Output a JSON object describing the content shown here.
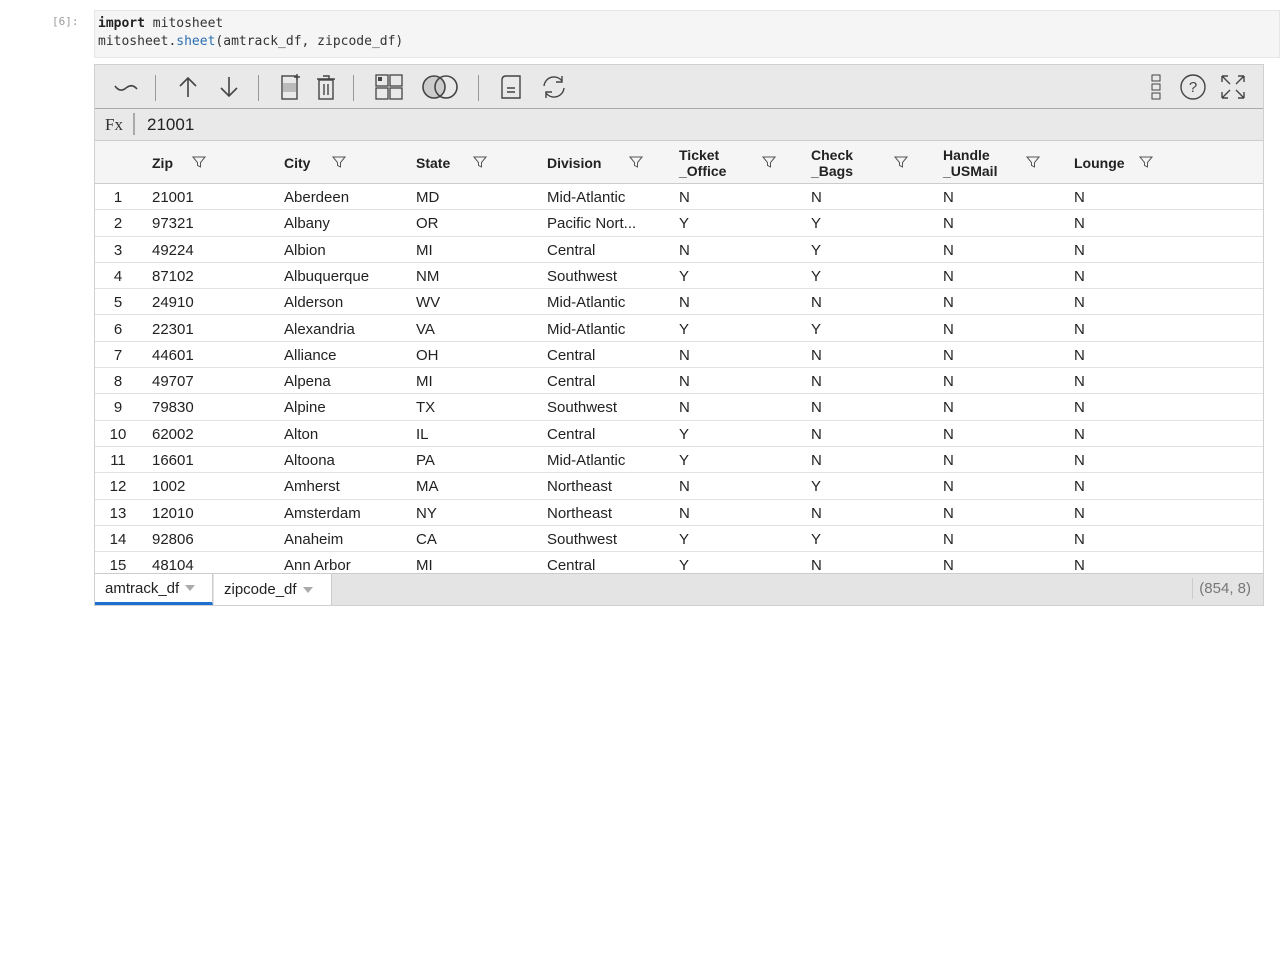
{
  "cell": {
    "prompt": "[6]:",
    "line1_kw": "import",
    "line1_rest": " mitosheet",
    "line2_a": "mitosheet.",
    "line2_fn": "sheet",
    "line2_b": "(amtrack_df, zipcode_df)"
  },
  "toolbar": {
    "icons": [
      "undo-icon",
      "move-up-icon",
      "move-down-icon",
      "add-column-icon",
      "delete-column-icon",
      "pivot-icon",
      "merge-icon",
      "export-icon",
      "refresh-icon",
      "column-list-icon",
      "help-icon",
      "fullscreen-icon"
    ]
  },
  "formula": {
    "label": "Fx",
    "value": "21001"
  },
  "columns": [
    {
      "l1": "Zip",
      "l2": ""
    },
    {
      "l1": "City",
      "l2": ""
    },
    {
      "l1": "State",
      "l2": ""
    },
    {
      "l1": "Division",
      "l2": ""
    },
    {
      "l1": "Ticket",
      "l2": "_Office"
    },
    {
      "l1": "Check",
      "l2": "_Bags"
    },
    {
      "l1": "Handle",
      "l2": "_USMail"
    },
    {
      "l1": "Lounge",
      "l2": ""
    }
  ],
  "rows": [
    [
      "1",
      "21001",
      "Aberdeen",
      "MD",
      "Mid-Atlantic",
      "N",
      "N",
      "N",
      "N"
    ],
    [
      "2",
      "97321",
      "Albany",
      "OR",
      "Pacific Nort...",
      "Y",
      "Y",
      "N",
      "N"
    ],
    [
      "3",
      "49224",
      "Albion",
      "MI",
      "Central",
      "N",
      "Y",
      "N",
      "N"
    ],
    [
      "4",
      "87102",
      "Albuquerque",
      "NM",
      "Southwest",
      "Y",
      "Y",
      "N",
      "N"
    ],
    [
      "5",
      "24910",
      "Alderson",
      "WV",
      "Mid-Atlantic",
      "N",
      "N",
      "N",
      "N"
    ],
    [
      "6",
      "22301",
      "Alexandria",
      "VA",
      "Mid-Atlantic",
      "Y",
      "Y",
      "N",
      "N"
    ],
    [
      "7",
      "44601",
      "Alliance",
      "OH",
      "Central",
      "N",
      "N",
      "N",
      "N"
    ],
    [
      "8",
      "49707",
      "Alpena",
      "MI",
      "Central",
      "N",
      "N",
      "N",
      "N"
    ],
    [
      "9",
      "79830",
      "Alpine",
      "TX",
      "Southwest",
      "N",
      "N",
      "N",
      "N"
    ],
    [
      "10",
      "62002",
      "Alton",
      "IL",
      "Central",
      "Y",
      "N",
      "N",
      "N"
    ],
    [
      "11",
      "16601",
      "Altoona",
      "PA",
      "Mid-Atlantic",
      "Y",
      "N",
      "N",
      "N"
    ],
    [
      "12",
      "1002",
      "Amherst",
      "MA",
      "Northeast",
      "N",
      "Y",
      "N",
      "N"
    ],
    [
      "13",
      "12010",
      "Amsterdam",
      "NY",
      "Northeast",
      "N",
      "N",
      "N",
      "N"
    ],
    [
      "14",
      "92806",
      "Anaheim",
      "CA",
      "Southwest",
      "Y",
      "Y",
      "N",
      "N"
    ],
    [
      "15",
      "48104",
      "Ann Arbor",
      "MI",
      "Central",
      "Y",
      "N",
      "N",
      "N"
    ]
  ],
  "tabs": [
    {
      "label": "amtrack_df",
      "active": true
    },
    {
      "label": "zipcode_df",
      "active": false
    }
  ],
  "shape": "(854, 8)",
  "colors": {
    "accent": "#1e6fd0",
    "toolbar_bg": "#e9e9e9"
  }
}
